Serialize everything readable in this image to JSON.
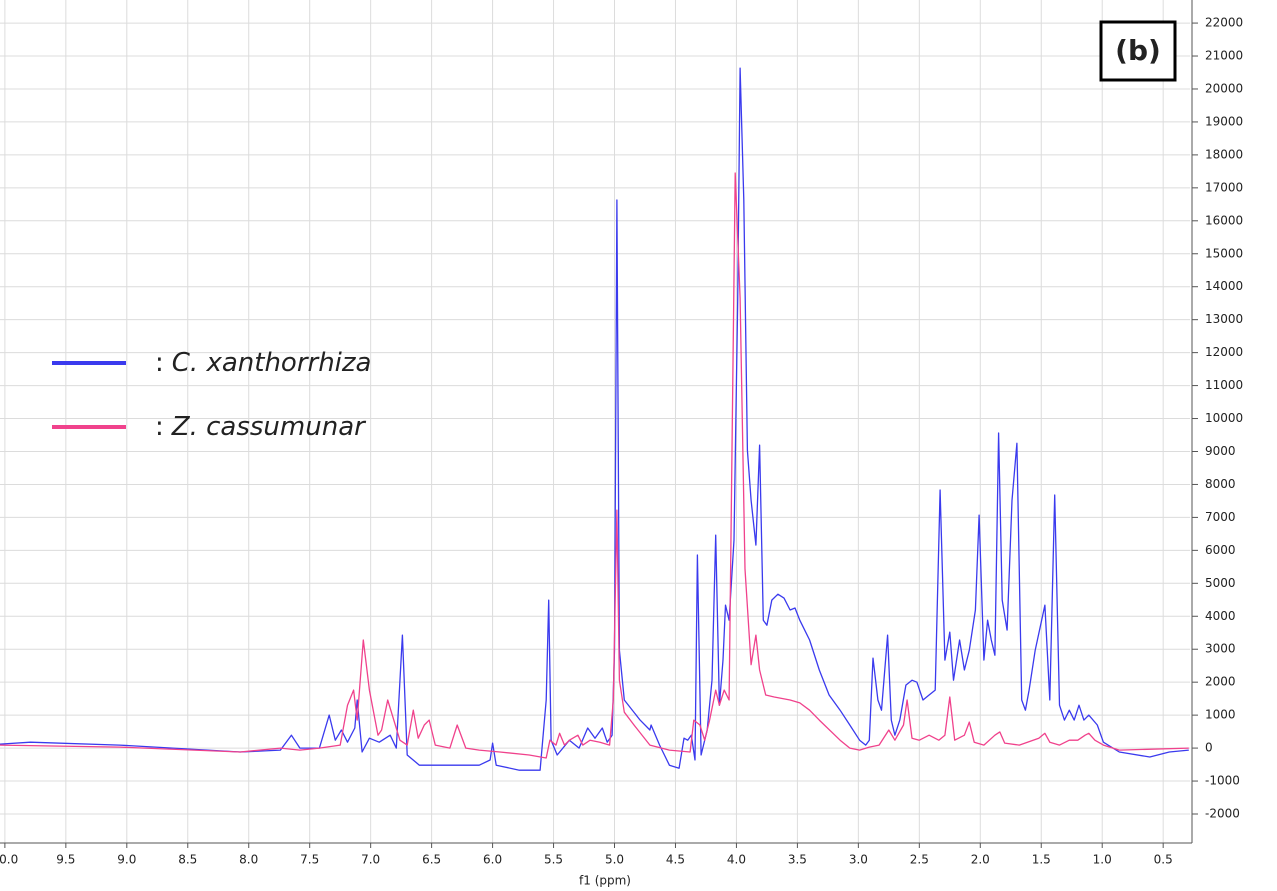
{
  "chart_data": {
    "type": "line",
    "annotation": "(b)",
    "x_label": "f1 (ppm)",
    "legend_separator": ":",
    "xlim": [
      10.04,
      0.28
    ],
    "ylim": [
      -2880,
      22700
    ],
    "xticks": [
      {
        "value": 10,
        "label": "10.0"
      },
      9.5,
      {
        "value": 9,
        "label": "9.0"
      },
      8.5,
      {
        "value": 8,
        "label": "8.0"
      },
      7.5,
      {
        "value": 7,
        "label": "7.0"
      },
      6.5,
      {
        "value": 6,
        "label": "6.0"
      },
      5.5,
      {
        "value": 5,
        "label": "5.0"
      },
      4.5,
      {
        "value": 4,
        "label": "4.0"
      },
      3.5,
      {
        "value": 3,
        "label": "3.0"
      },
      2.5,
      {
        "value": 2,
        "label": "2.0"
      },
      1.5,
      {
        "value": 1,
        "label": "1.0"
      },
      0.5
    ],
    "yticks": [
      -2000,
      -1000,
      0,
      1000,
      2000,
      3000,
      4000,
      5000,
      6000,
      7000,
      8000,
      9000,
      10000,
      11000,
      12000,
      13000,
      14000,
      15000,
      16000,
      17000,
      18000,
      19000,
      20000,
      21000,
      22000
    ],
    "grid": true,
    "series": [
      {
        "name": "C. xanthorrhiza",
        "color": "#3a3aee",
        "x": [
          10.04,
          9.79,
          9.06,
          8.07,
          7.74,
          7.65,
          7.58,
          7.42,
          7.34,
          7.29,
          7.24,
          7.19,
          7.13,
          7.11,
          7.07,
          7.01,
          6.93,
          6.84,
          6.79,
          6.74,
          6.7,
          6.6,
          6.43,
          6.11,
          6.02,
          6.0,
          5.97,
          5.78,
          5.61,
          5.56,
          5.54,
          5.52,
          5.47,
          5.37,
          5.29,
          5.22,
          5.16,
          5.1,
          5.06,
          5.02,
          5.0,
          4.98,
          4.96,
          4.92,
          4.79,
          4.71,
          4.7,
          4.63,
          4.55,
          4.47,
          4.43,
          4.4,
          4.37,
          4.34,
          4.32,
          4.29,
          4.24,
          4.2,
          4.17,
          4.14,
          4.11,
          4.09,
          4.06,
          4.02,
          3.99,
          3.97,
          3.94,
          3.91,
          3.88,
          3.84,
          3.81,
          3.78,
          3.75,
          3.71,
          3.66,
          3.61,
          3.56,
          3.52,
          3.48,
          3.4,
          3.32,
          3.24,
          3.15,
          3.07,
          2.99,
          2.94,
          2.91,
          2.88,
          2.84,
          2.81,
          2.76,
          2.73,
          2.7,
          2.66,
          2.61,
          2.56,
          2.52,
          2.47,
          2.42,
          2.37,
          2.33,
          2.29,
          2.25,
          2.22,
          2.17,
          2.13,
          2.09,
          2.04,
          2.01,
          1.97,
          1.94,
          1.91,
          1.88,
          1.85,
          1.82,
          1.78,
          1.74,
          1.7,
          1.66,
          1.63,
          1.6,
          1.55,
          1.47,
          1.43,
          1.39,
          1.35,
          1.31,
          1.27,
          1.23,
          1.19,
          1.15,
          1.11,
          1.04,
          0.99,
          0.86,
          0.61,
          0.45,
          0.29
        ],
        "values": [
          120,
          180,
          90,
          -120,
          -60,
          390,
          0,
          0,
          1000,
          240,
          550,
          180,
          610,
          1460,
          -120,
          300,
          180,
          390,
          0,
          3430,
          -210,
          -520,
          -520,
          -520,
          -360,
          150,
          -520,
          -670,
          -670,
          1460,
          4490,
          240,
          -210,
          240,
          0,
          610,
          300,
          610,
          180,
          390,
          2970,
          16630,
          2970,
          1460,
          850,
          550,
          700,
          90,
          -520,
          -610,
          300,
          240,
          390,
          -360,
          5860,
          -210,
          550,
          2060,
          6460,
          1300,
          2670,
          4340,
          3880,
          6310,
          13590,
          20630,
          16630,
          9040,
          7520,
          6160,
          9190,
          3880,
          3730,
          4490,
          4670,
          4550,
          4190,
          4250,
          3880,
          3280,
          2370,
          1610,
          1150,
          700,
          240,
          90,
          240,
          2730,
          1460,
          1150,
          3430,
          850,
          390,
          850,
          1910,
          2060,
          2000,
          1460,
          1610,
          1760,
          7830,
          2670,
          3520,
          2060,
          3280,
          2370,
          2970,
          4190,
          7070,
          2670,
          3880,
          3280,
          2820,
          9560,
          4490,
          3580,
          7520,
          9250,
          1460,
          1150,
          1760,
          2970,
          4340,
          1460,
          7680,
          1300,
          850,
          1150,
          850,
          1300,
          850,
          1000,
          700,
          180,
          -120,
          -270,
          -120,
          -60
        ]
      },
      {
        "name": "Z. cassumunar",
        "color": "#f0428c",
        "x": [
          10.04,
          9.06,
          8.07,
          7.74,
          7.58,
          7.42,
          7.25,
          7.19,
          7.14,
          7.11,
          7.06,
          7.01,
          6.94,
          6.91,
          6.86,
          6.81,
          6.76,
          6.7,
          6.65,
          6.61,
          6.56,
          6.52,
          6.47,
          6.35,
          6.29,
          6.22,
          6.11,
          5.94,
          5.7,
          5.56,
          5.53,
          5.48,
          5.45,
          5.41,
          5.37,
          5.3,
          5.26,
          5.2,
          5.12,
          5.04,
          5.01,
          4.98,
          4.96,
          4.92,
          4.84,
          4.71,
          4.55,
          4.38,
          4.35,
          4.3,
          4.26,
          4.22,
          4.17,
          4.14,
          4.1,
          4.06,
          4.01,
          3.97,
          3.93,
          3.88,
          3.84,
          3.81,
          3.76,
          3.69,
          3.56,
          3.48,
          3.4,
          3.32,
          3.15,
          3.07,
          2.99,
          2.91,
          2.83,
          2.75,
          2.7,
          2.63,
          2.6,
          2.56,
          2.5,
          2.42,
          2.34,
          2.29,
          2.25,
          2.21,
          2.13,
          2.09,
          2.05,
          1.97,
          1.88,
          1.84,
          1.8,
          1.68,
          1.52,
          1.47,
          1.43,
          1.35,
          1.27,
          1.2,
          1.14,
          1.11,
          1.06,
          0.99,
          0.86,
          0.29
        ],
        "values": [
          90,
          30,
          -120,
          0,
          -60,
          0,
          90,
          1300,
          1760,
          850,
          3280,
          1760,
          390,
          550,
          1460,
          850,
          240,
          90,
          1150,
          300,
          700,
          850,
          90,
          0,
          700,
          0,
          -60,
          -120,
          -210,
          -300,
          240,
          90,
          450,
          90,
          240,
          390,
          90,
          240,
          180,
          90,
          1460,
          7220,
          2060,
          1090,
          700,
          90,
          -60,
          -120,
          850,
          700,
          240,
          850,
          1760,
          1300,
          1760,
          1460,
          17450,
          13650,
          5430,
          2530,
          3430,
          2370,
          1610,
          1550,
          1460,
          1370,
          1150,
          850,
          240,
          0,
          -60,
          30,
          90,
          550,
          240,
          700,
          1460,
          300,
          240,
          390,
          240,
          390,
          1550,
          240,
          390,
          790,
          180,
          90,
          390,
          490,
          150,
          90,
          300,
          450,
          180,
          90,
          240,
          240,
          390,
          450,
          240,
          90,
          -60,
          0
        ]
      }
    ]
  }
}
